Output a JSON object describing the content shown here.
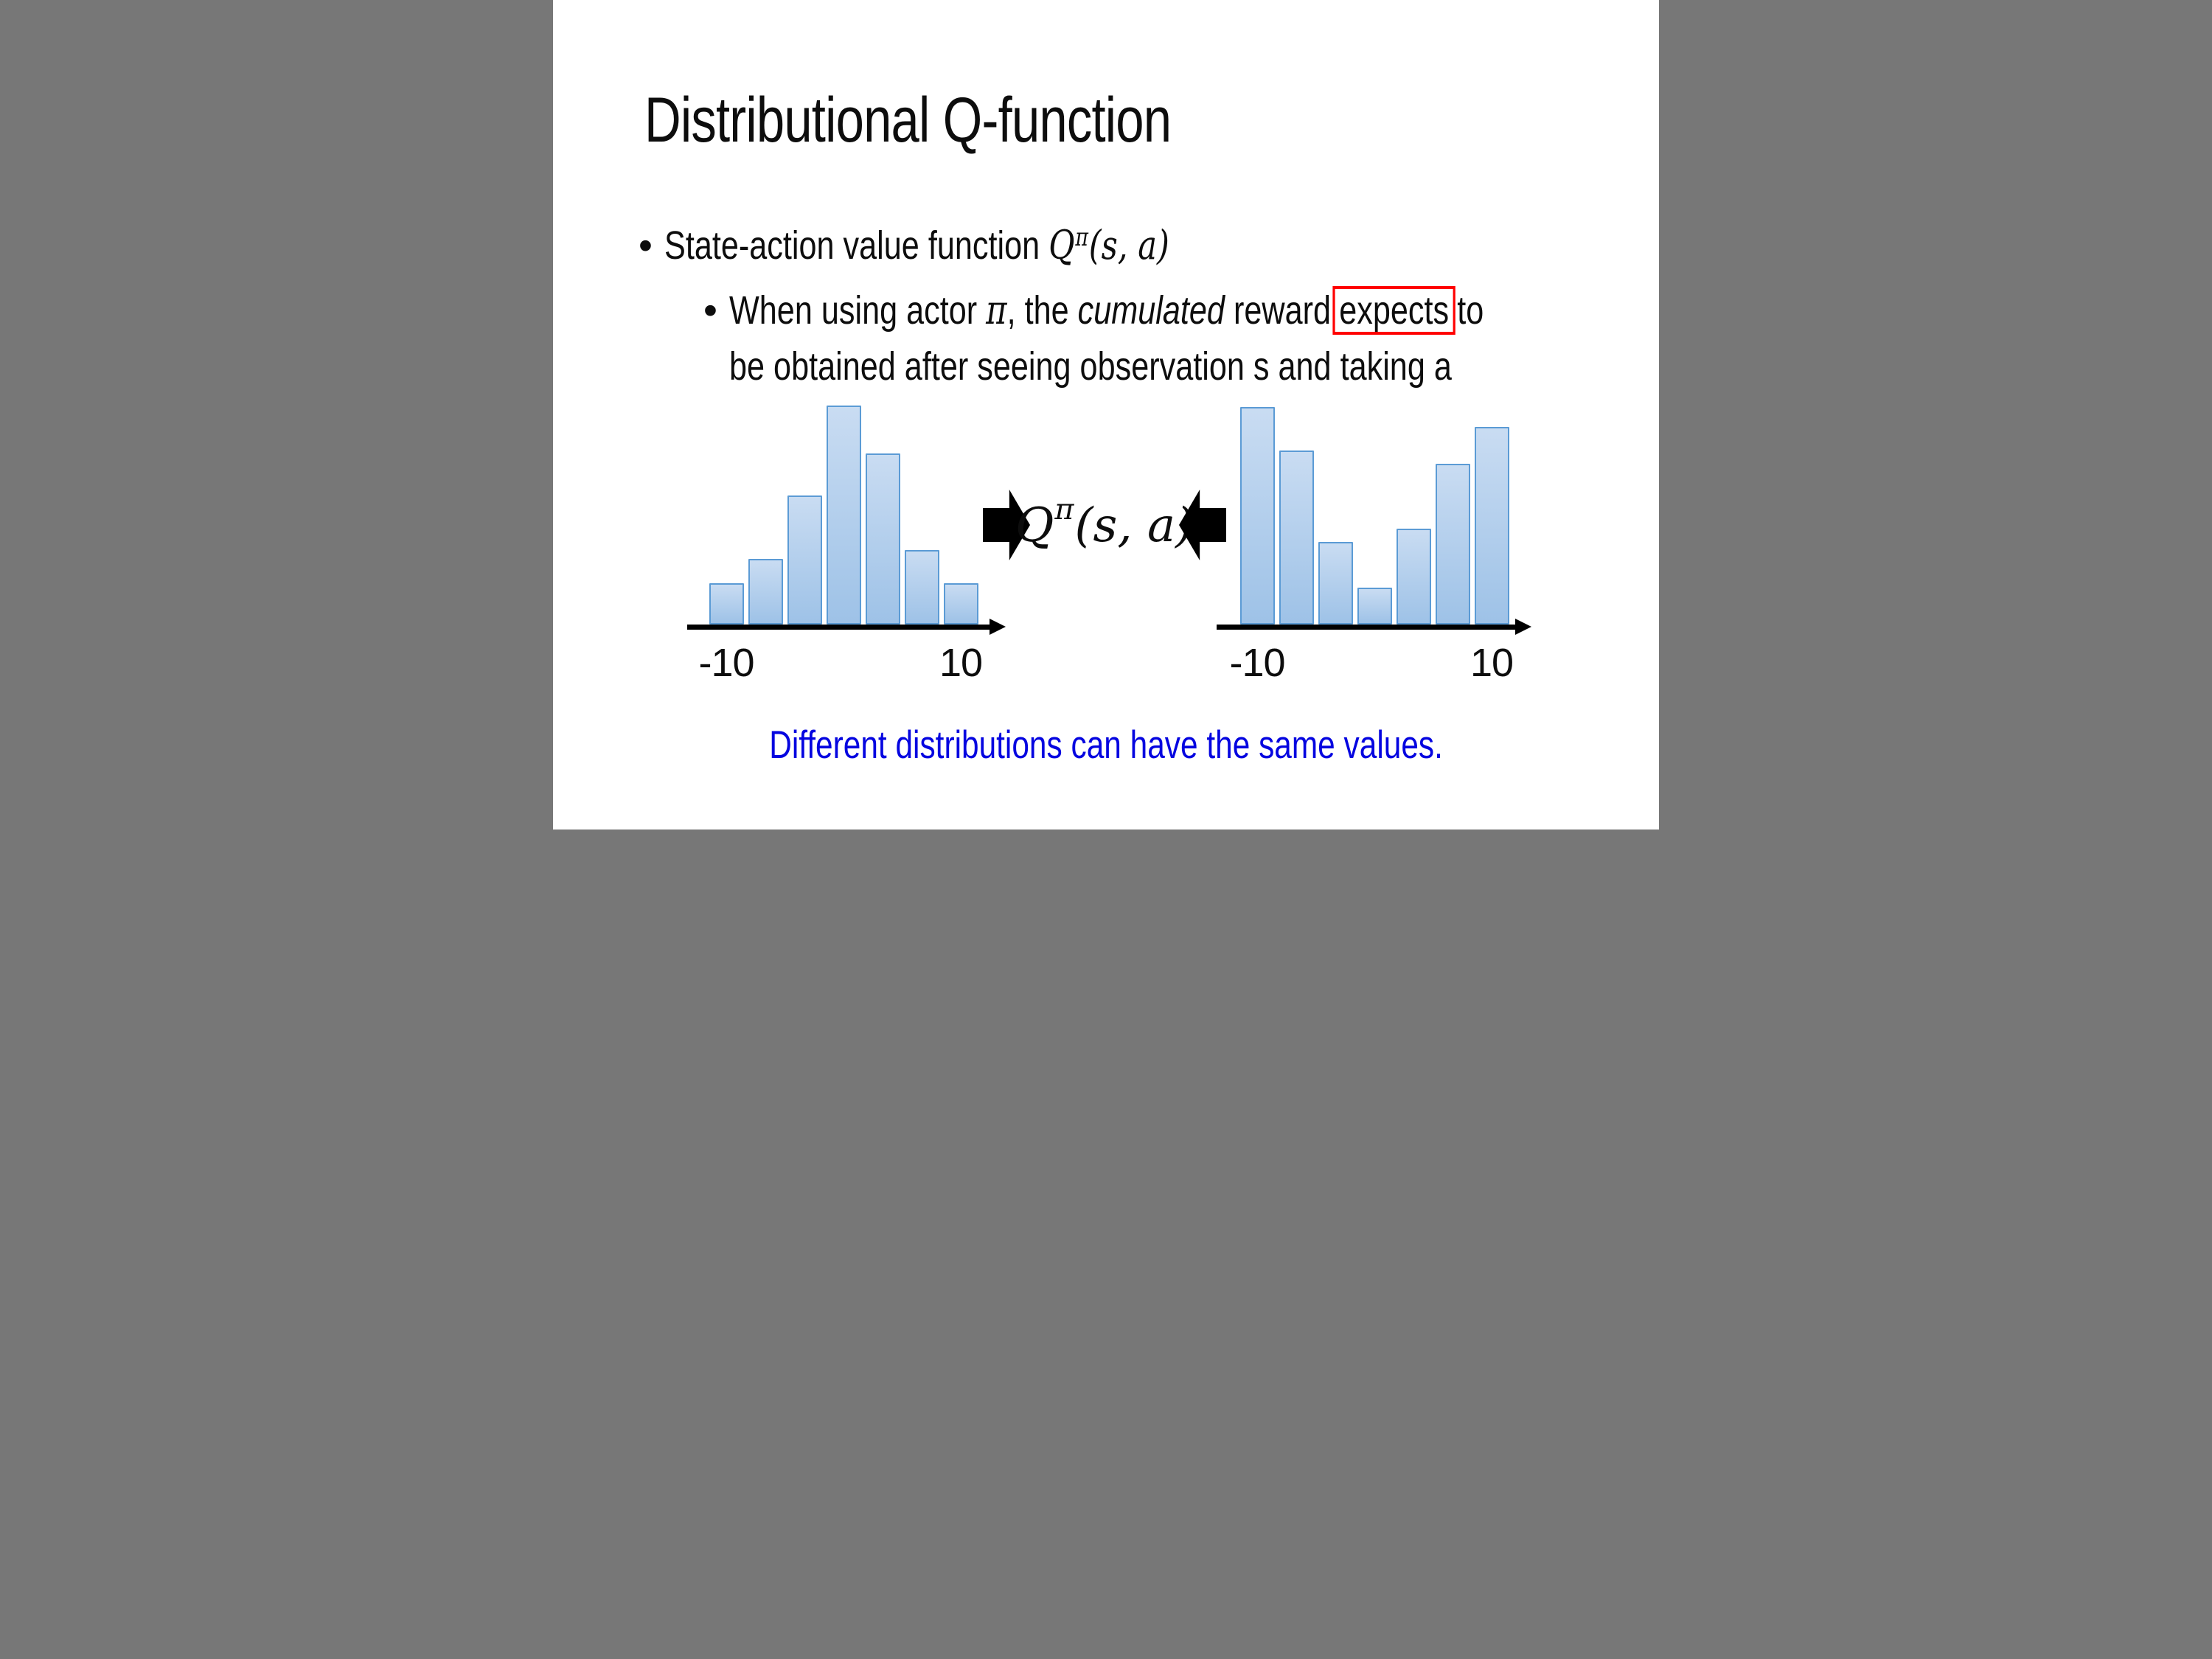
{
  "slide": {
    "title": "Distributional Q-function",
    "bullets": {
      "bullet_glyph": "•",
      "b1_prefix": "State-action value function ",
      "b1_math": {
        "base": "Q",
        "sup": "π",
        "args": "(s, a)"
      },
      "b2_line1_segments": [
        {
          "t": "When using actor ",
          "s": ""
        },
        {
          "t": "π",
          "s": "math"
        },
        {
          "t": ", the ",
          "s": ""
        },
        {
          "t": "cumulated",
          "s": "it"
        },
        {
          "t": " reward",
          "s": ""
        },
        {
          "t": "expects",
          "s": "box"
        },
        {
          "t": "to",
          "s": ""
        }
      ],
      "b2_line2": "be obtained after seeing observation s and taking a"
    },
    "center": {
      "math": {
        "base": "Q",
        "sup": "π",
        "args": "(s, a)"
      }
    },
    "caption": "Different distributions can have the same values.",
    "colors": {
      "text": "#0d0d0d",
      "caption_blue": "#0505e0",
      "highlight_red": "#ff0000",
      "bar_fill_top": "#c9dcf2",
      "bar_fill_bottom": "#9ec2e7",
      "bar_border": "#5b9bd5",
      "axis_black": "#000000"
    }
  },
  "chart_data": [
    {
      "type": "bar",
      "id": "left-distribution",
      "description": "Unimodal bell-shaped reward distribution (histogram, 7 bins, no y-axis shown)",
      "x_range": [
        -10,
        10
      ],
      "x_tick_labels": [
        "-10",
        "10"
      ],
      "bin_centers_approx": [
        -10,
        -6.7,
        -3.3,
        0,
        3.3,
        6.7,
        10
      ],
      "values_relative": [
        0.19,
        0.3,
        0.59,
        1.0,
        0.78,
        0.34,
        0.19
      ],
      "y_unit": "relative probability (max bar = 1.0)",
      "grid": false,
      "legend": false
    },
    {
      "type": "bar",
      "id": "right-distribution",
      "description": "Bimodal U-shaped reward distribution (histogram, 7 bins, no y-axis shown)",
      "x_range": [
        -10,
        10
      ],
      "x_tick_labels": [
        "-10",
        "10"
      ],
      "bin_centers_approx": [
        -10,
        -6.7,
        -3.3,
        0,
        3.3,
        6.7,
        10
      ],
      "values_relative": [
        1.0,
        0.8,
        0.38,
        0.17,
        0.44,
        0.74,
        0.91
      ],
      "y_unit": "relative probability (max bar = 1.0)",
      "grid": false,
      "legend": false
    }
  ]
}
